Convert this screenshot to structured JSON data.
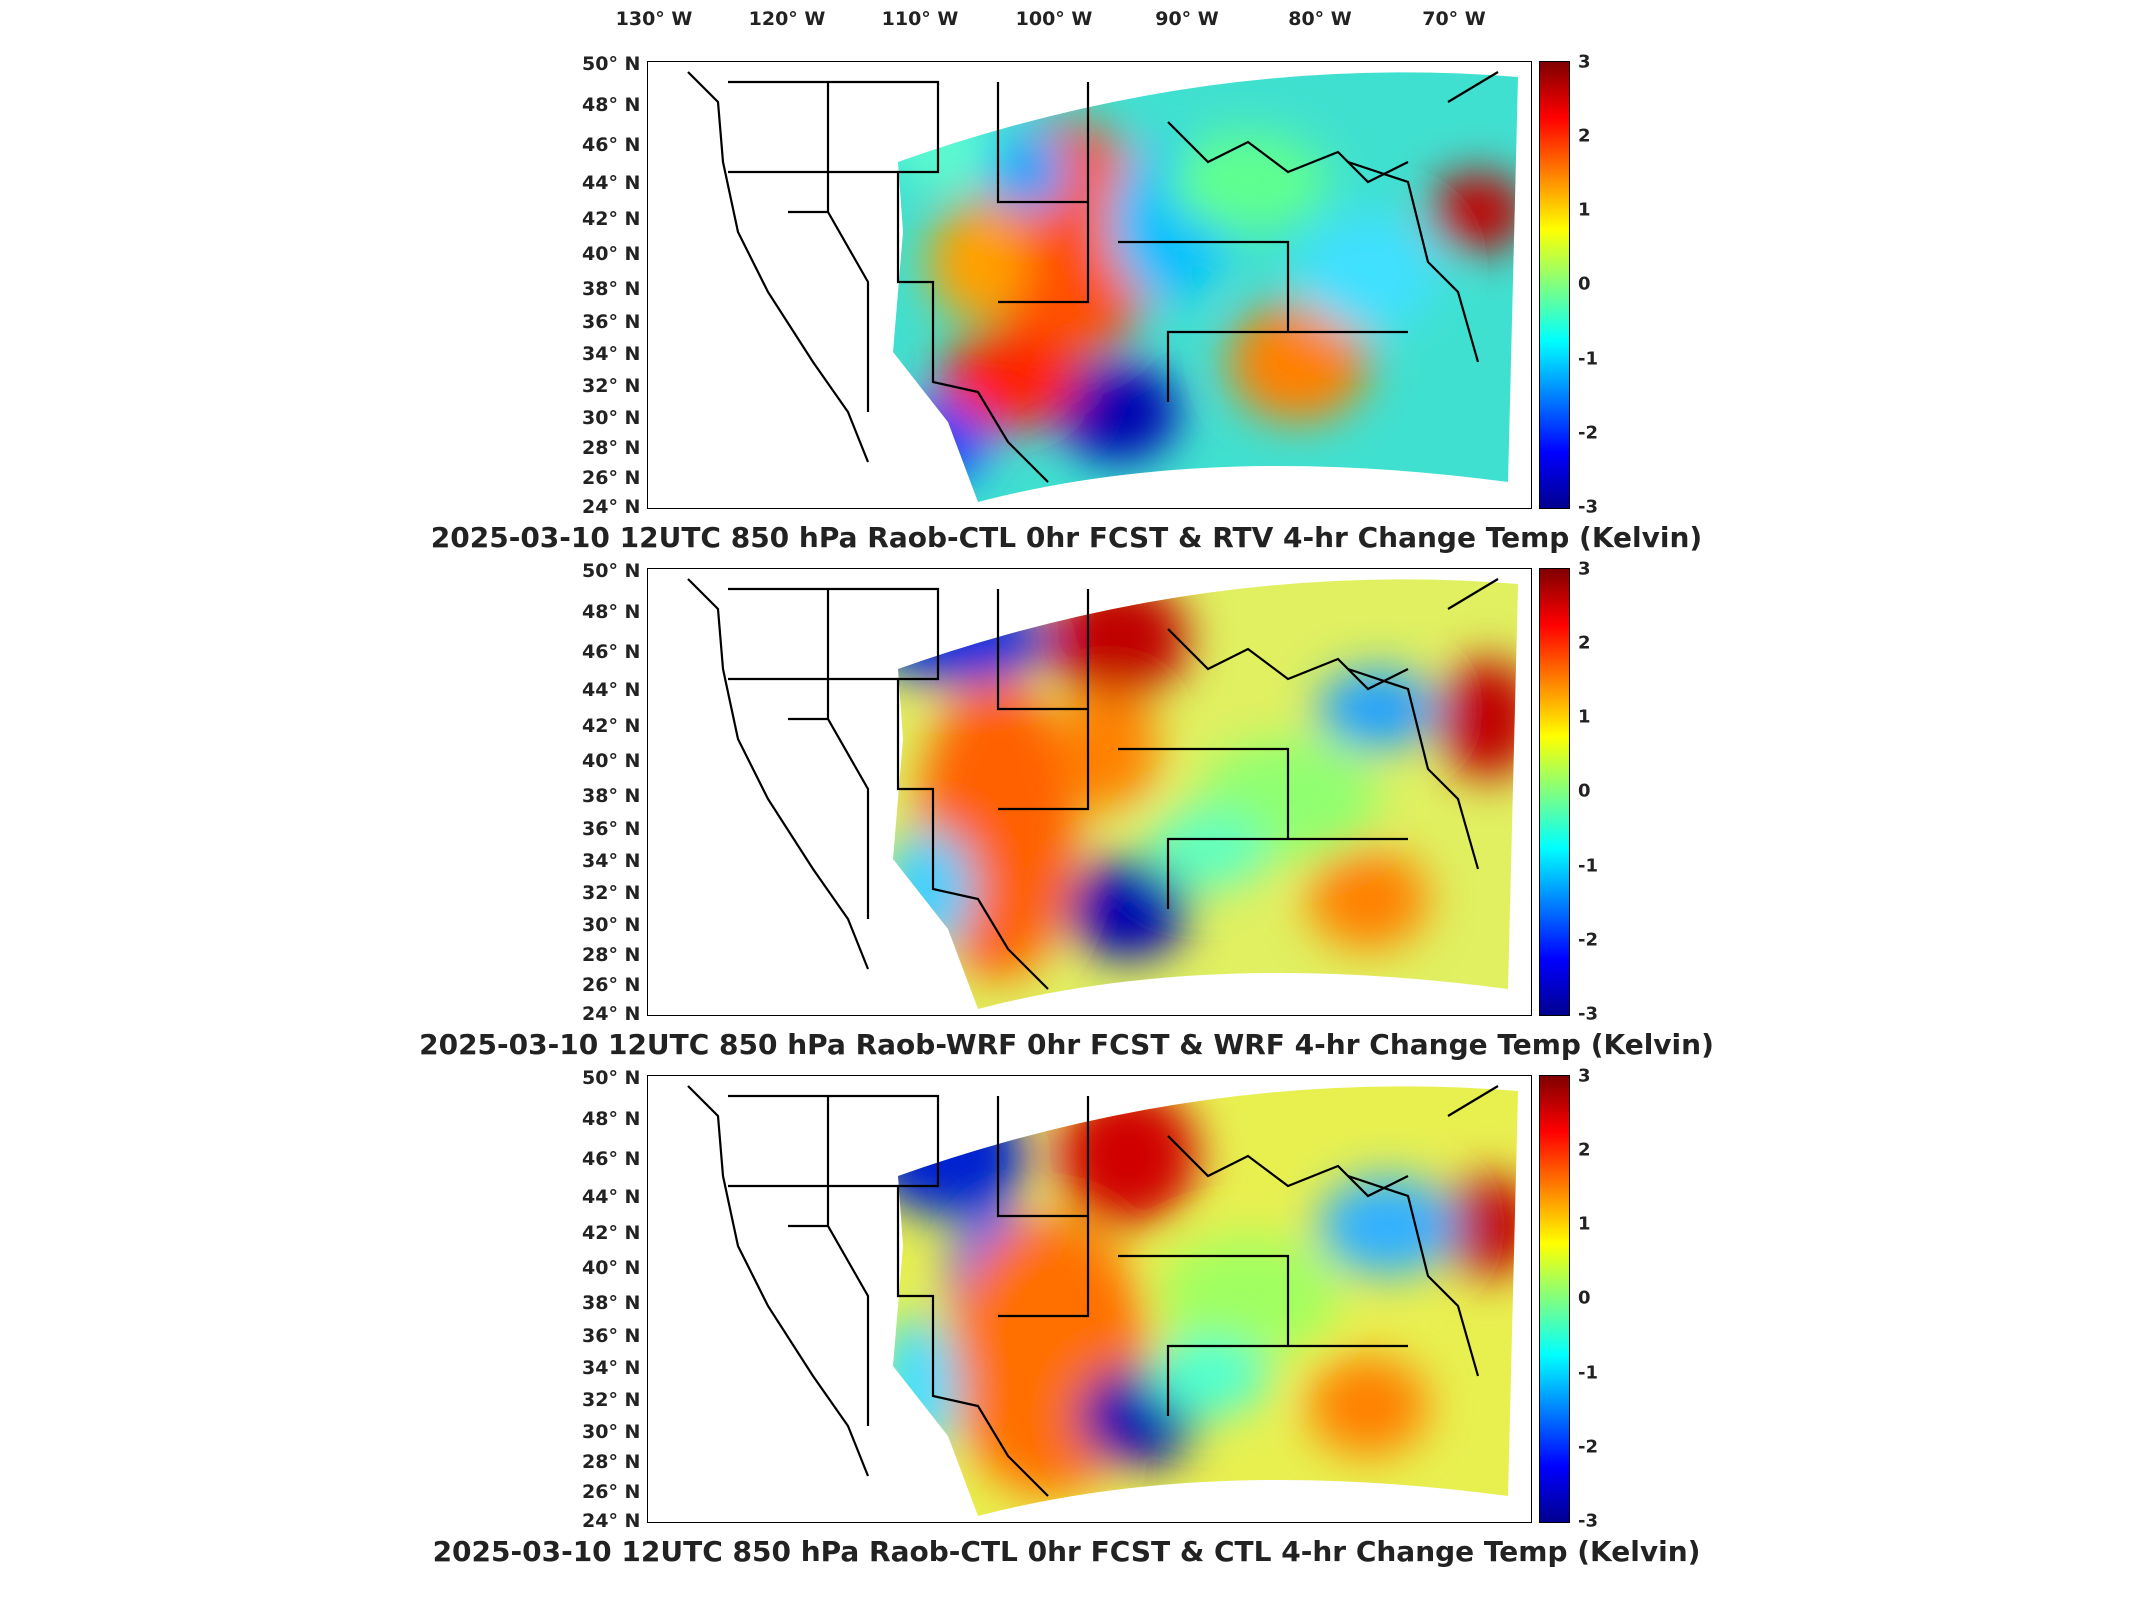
{
  "longitude_labels": [
    "130° W",
    "120° W",
    "110° W",
    "100° W",
    "90° W",
    "80° W",
    "70° W"
  ],
  "latitude_labels": [
    "50° N",
    "48° N",
    "46° N",
    "44° N",
    "42° N",
    "40° N",
    "38° N",
    "36° N",
    "34° N",
    "32° N",
    "30° N",
    "28° N",
    "26° N",
    "24° N"
  ],
  "colorbar": {
    "ticks": [
      "3",
      "2",
      "1",
      "0",
      "-1",
      "-2",
      "-3"
    ],
    "min": -3,
    "max": 3,
    "colormap": "jet",
    "colors": [
      "#00008f",
      "#0000ff",
      "#0080ff",
      "#00ffff",
      "#80ff80",
      "#ffff00",
      "#ff8000",
      "#ff0000",
      "#800000"
    ]
  },
  "panels": [
    {
      "title": "2025-03-10 12UTC 850 hPa Raob-CTL 0hr FCST & RTV 4-hr Change Temp (Kelvin)"
    },
    {
      "title": "2025-03-10 12UTC 850 hPa Raob-WRF 0hr FCST & WRF 4-hr Change Temp (Kelvin)"
    },
    {
      "title": "2025-03-10 12UTC 850 hPa Raob-CTL 0hr FCST & CTL 4-hr Change Temp (Kelvin)"
    }
  ]
}
